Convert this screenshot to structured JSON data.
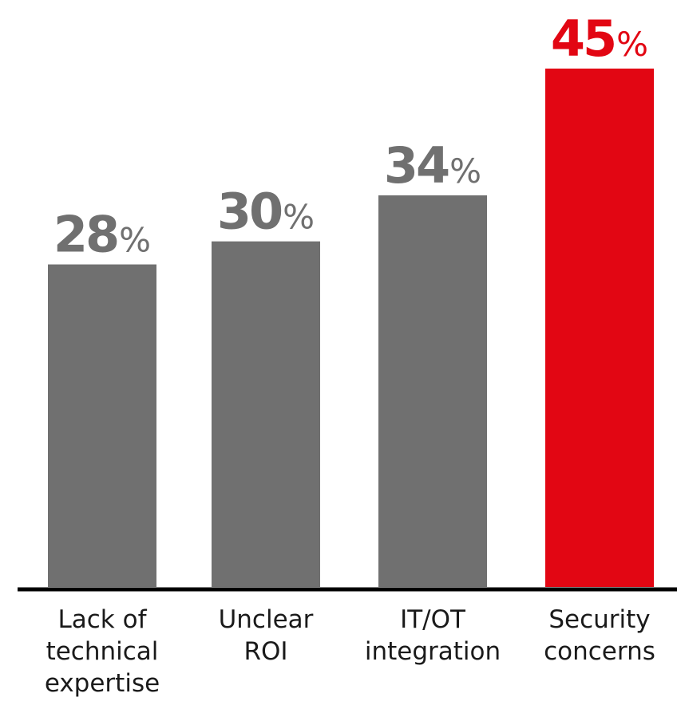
{
  "chart_data": {
    "type": "bar",
    "categories": [
      [
        "Lack of",
        "technical",
        "expertise"
      ],
      [
        "Unclear",
        "ROI"
      ],
      [
        "IT/OT",
        "integration"
      ],
      [
        "Security",
        "concerns"
      ]
    ],
    "values": [
      28,
      30,
      34,
      45
    ],
    "value_labels": [
      "28",
      "30",
      "34",
      "45"
    ],
    "value_suffix": "%",
    "highlight_index": 3,
    "ylim": [
      0,
      45
    ],
    "grid": false,
    "title": "",
    "xlabel": "",
    "ylabel": ""
  },
  "colors": {
    "bar": "#707070",
    "highlight": "#e20613",
    "axis": "#000000",
    "category_text": "#1a1a1a"
  }
}
